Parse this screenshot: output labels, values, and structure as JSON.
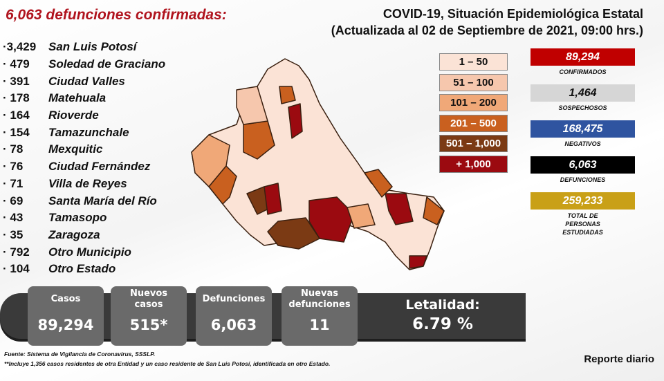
{
  "headline": "6,063 defunciones confirmadas:",
  "title": {
    "line1": "COVID-19, Situación Epidemiológica Estatal",
    "line2": "(Actualizada al 02 de Septiembre de 2021, 09:00 hrs.)"
  },
  "deaths_by_municipality": [
    {
      "n": "·3,429",
      "m": "San Luis Potosí"
    },
    {
      "n": "· 479",
      "m": "Soledad de Graciano"
    },
    {
      "n": "· 391",
      "m": "Ciudad Valles"
    },
    {
      "n": "· 178",
      "m": "Matehuala"
    },
    {
      "n": "· 164",
      "m": "Rioverde"
    },
    {
      "n": "· 154",
      "m": "Tamazunchale"
    },
    {
      "n": "· 78",
      "m": "Mexquitic"
    },
    {
      "n": "· 76",
      "m": "Ciudad Fernández"
    },
    {
      "n": "· 71",
      "m": "Villa de Reyes"
    },
    {
      "n": "· 69",
      "m": "Santa María del Río"
    },
    {
      "n": "· 43",
      "m": "Tamasopo"
    },
    {
      "n": "· 35",
      "m": "Zaragoza"
    },
    {
      "n": "· 792",
      "m": "Otro Municipio"
    },
    {
      "n": "· 104",
      "m": "Otro Estado"
    }
  ],
  "legend": [
    {
      "label": "1 – 50",
      "color": "#fbe3d6",
      "text": "#111"
    },
    {
      "label": "51 – 100",
      "color": "#f6c7ad",
      "text": "#111"
    },
    {
      "label": "101 – 200",
      "color": "#f0a878",
      "text": "#111"
    },
    {
      "label": "201 – 500",
      "color": "#c9601f",
      "text": "#fff"
    },
    {
      "label": "501 – 1,000",
      "color": "#7b3a14",
      "text": "#fff"
    },
    {
      "label": "+ 1,000",
      "color": "#9b0a10",
      "text": "#fff"
    }
  ],
  "stats": [
    {
      "value": "89,294",
      "label": "CONFIRMADOS",
      "color": "#c00000",
      "text": "#fff"
    },
    {
      "value": "1,464",
      "label": "SOSPECHOSOS",
      "color": "#d6d6d6",
      "text": "#111"
    },
    {
      "value": "168,475",
      "label": "NEGATIVOS",
      "color": "#2f54a0",
      "text": "#fff"
    },
    {
      "value": "6,063",
      "label": "DEFUNCIONES",
      "color": "#000000",
      "text": "#fff"
    },
    {
      "value": "259,233",
      "label": "TOTAL DE PERSONAS ESTUDIADAS",
      "color": "#c9a017",
      "text": "#fff"
    }
  ],
  "summary": {
    "casos": {
      "h": "Casos",
      "v": "89,294"
    },
    "nuevos": {
      "h": "Nuevos casos",
      "v": "515*"
    },
    "defunciones": {
      "h": "Defunciones",
      "v": "6,063"
    },
    "nuevas_def": {
      "h": "Nuevas defunciones",
      "v": "11"
    },
    "letalidad": {
      "h": "Letalidad:",
      "v": "6.79 %"
    }
  },
  "footnote": {
    "l1": "Fuente: Sistema de Vigilancia de Coronavirus, SSSLP.",
    "l2": "**Incluye 1,356 casos residentes de otra Entidad y un caso residente de San Luis Potosí, identificada en otro Estado."
  },
  "report": "Reporte diario"
}
